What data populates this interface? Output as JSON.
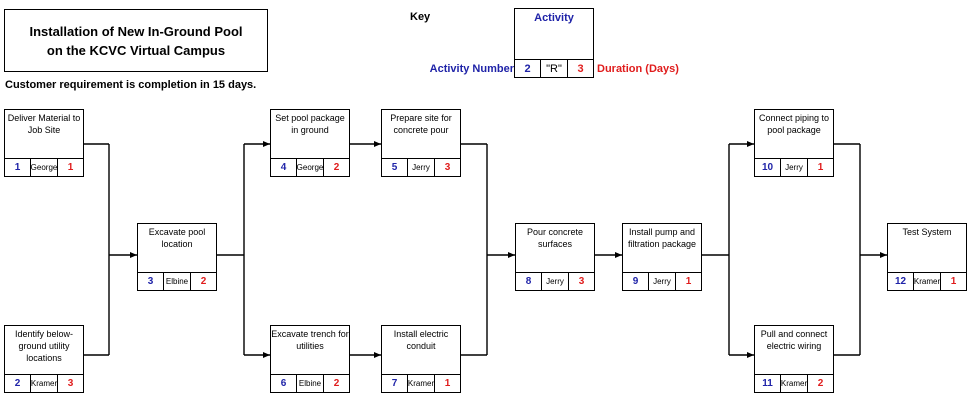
{
  "title": {
    "line1": "Installation of New In-Ground Pool",
    "line2": "on the KCVC Virtual Campus"
  },
  "requirement": "Customer requirement is completion in 15 days.",
  "key": {
    "label": "Key",
    "activity_label": "Activity",
    "number_label": "Activity Number",
    "example_number": "2",
    "example_resource": "\"R\"",
    "example_duration": "3",
    "duration_label": "Duration (Days)"
  },
  "activities": [
    {
      "id": "a1",
      "desc": "Deliver Material to Job Site",
      "num": "1",
      "res": "George",
      "dur": "1"
    },
    {
      "id": "a2",
      "desc": "Identify below-ground utility locations",
      "num": "2",
      "res": "Kramer",
      "dur": "3"
    },
    {
      "id": "a3",
      "desc": "Excavate pool location",
      "num": "3",
      "res": "Elbine",
      "dur": "2"
    },
    {
      "id": "a4",
      "desc": "Set pool package in ground",
      "num": "4",
      "res": "George",
      "dur": "2"
    },
    {
      "id": "a5",
      "desc": "Prepare site for concrete pour",
      "num": "5",
      "res": "Jerry",
      "dur": "3"
    },
    {
      "id": "a6",
      "desc": "Excavate trench for utilities",
      "num": "6",
      "res": "Elbine",
      "dur": "2"
    },
    {
      "id": "a7",
      "desc": "Install electric conduit",
      "num": "7",
      "res": "Kramer",
      "dur": "1"
    },
    {
      "id": "a8",
      "desc": "Pour concrete surfaces",
      "num": "8",
      "res": "Jerry",
      "dur": "3"
    },
    {
      "id": "a9",
      "desc": "Install pump and filtration package",
      "num": "9",
      "res": "Jerry",
      "dur": "1"
    },
    {
      "id": "a10",
      "desc": "Connect piping to pool package",
      "num": "10",
      "res": "Jerry",
      "dur": "1"
    },
    {
      "id": "a11",
      "desc": "Pull and connect electric wiring",
      "num": "11",
      "res": "Kramer",
      "dur": "2"
    },
    {
      "id": "a12",
      "desc": "Test System",
      "num": "12",
      "res": "Kramer",
      "dur": "1"
    }
  ]
}
